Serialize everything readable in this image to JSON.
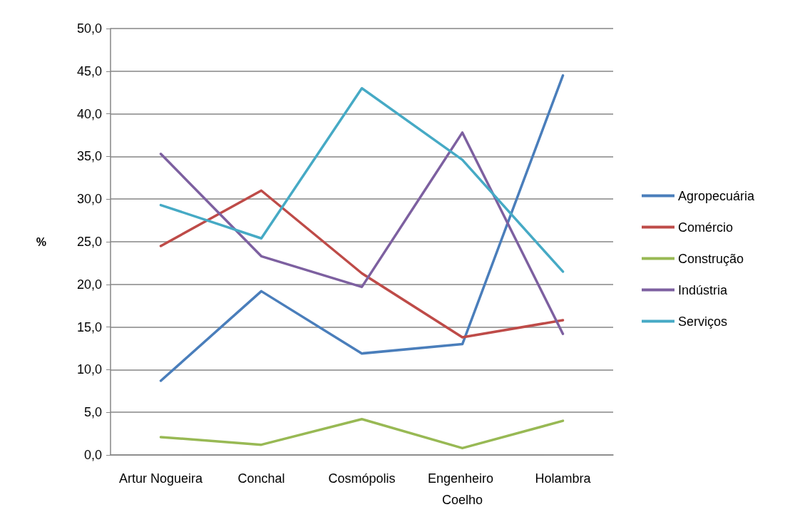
{
  "chart_data": {
    "type": "line",
    "ylabel": "%",
    "categories": [
      "Artur Nogueira",
      "Conchal",
      "Cosmópolis",
      "Engenheiro Coelho",
      "Holambra"
    ],
    "series": [
      {
        "name": "Agropecuária",
        "color": "#4a7ebb",
        "values": [
          8.7,
          19.2,
          11.9,
          13.0,
          44.5
        ]
      },
      {
        "name": "Comércio",
        "color": "#be4b48",
        "values": [
          24.5,
          31.0,
          21.3,
          13.8,
          15.8
        ]
      },
      {
        "name": "Construção",
        "color": "#98b954",
        "values": [
          2.1,
          1.2,
          4.2,
          0.8,
          4.0
        ]
      },
      {
        "name": "Indústria",
        "color": "#7d60a0",
        "values": [
          35.3,
          23.3,
          19.7,
          37.8,
          14.2
        ]
      },
      {
        "name": "Serviços",
        "color": "#46aac5",
        "values": [
          29.3,
          25.4,
          43.0,
          34.6,
          21.5
        ]
      }
    ],
    "ylim": [
      0,
      50
    ],
    "yticks": [
      {
        "value": 0,
        "label": "0,0"
      },
      {
        "value": 5,
        "label": "5,0"
      },
      {
        "value": 10,
        "label": "10,0"
      },
      {
        "value": 15,
        "label": "15,0"
      },
      {
        "value": 20,
        "label": "20,0"
      },
      {
        "value": 25,
        "label": "25,0"
      },
      {
        "value": 30,
        "label": "30,0"
      },
      {
        "value": 35,
        "label": "35,0"
      },
      {
        "value": 40,
        "label": "40,0"
      },
      {
        "value": 45,
        "label": "45,0"
      },
      {
        "value": 50,
        "label": "50,0"
      }
    ],
    "grid": "y",
    "legend": "right",
    "marker": "none",
    "line_style": "solid"
  }
}
